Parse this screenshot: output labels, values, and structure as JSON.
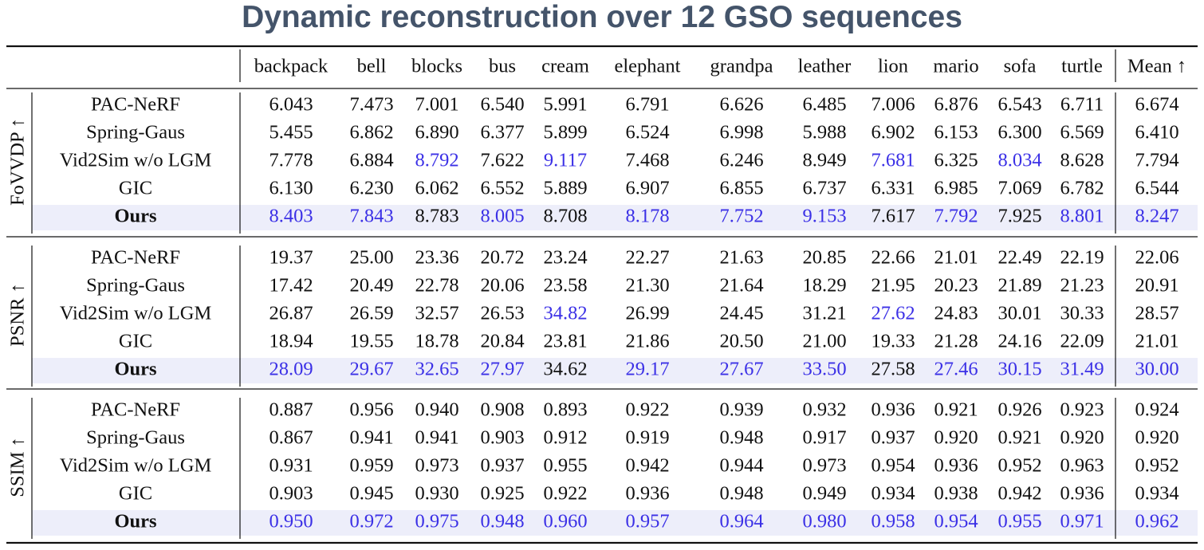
{
  "title": "Dynamic reconstruction over 12 GSO sequences",
  "colors": {
    "best": "#3b30e6",
    "normal": "#111111",
    "highlight_row": "#edeefa",
    "title": "#44546a"
  },
  "chart_data": {
    "type": "table",
    "columns": [
      "backpack",
      "bell",
      "blocks",
      "bus",
      "cream",
      "elephant",
      "grandpa",
      "leather",
      "lion",
      "mario",
      "sofa",
      "turtle",
      "Mean ↑"
    ],
    "groups": [
      {
        "metric": "FoVVDP ↑",
        "rows": [
          {
            "method": "PAC-NeRF",
            "values": [
              "6.043",
              "7.473",
              "7.001",
              "6.540",
              "5.991",
              "6.791",
              "6.626",
              "6.485",
              "7.006",
              "6.876",
              "6.543",
              "6.711",
              "6.674"
            ],
            "best": []
          },
          {
            "method": "Spring-Gaus",
            "values": [
              "5.455",
              "6.862",
              "6.890",
              "6.377",
              "5.899",
              "6.524",
              "6.998",
              "5.988",
              "6.902",
              "6.153",
              "6.300",
              "6.569",
              "6.410"
            ],
            "best": []
          },
          {
            "method": "Vid2Sim w/o LGM",
            "values": [
              "7.778",
              "6.884",
              "8.792",
              "7.622",
              "9.117",
              "7.468",
              "6.246",
              "8.949",
              "7.681",
              "6.325",
              "8.034",
              "8.628",
              "7.794"
            ],
            "best": [
              2,
              4,
              8,
              10
            ]
          },
          {
            "method": "GIC",
            "values": [
              "6.130",
              "6.230",
              "6.062",
              "6.552",
              "5.889",
              "6.907",
              "6.855",
              "6.737",
              "6.331",
              "6.985",
              "7.069",
              "6.782",
              "6.544"
            ],
            "best": []
          },
          {
            "method": "Ours",
            "values": [
              "8.403",
              "7.843",
              "8.783",
              "8.005",
              "8.708",
              "8.178",
              "7.752",
              "9.153",
              "7.617",
              "7.792",
              "7.925",
              "8.801",
              "8.247"
            ],
            "best": [
              0,
              1,
              3,
              5,
              6,
              7,
              9,
              11,
              12
            ],
            "bold": true
          }
        ]
      },
      {
        "metric": "PSNR ↑",
        "rows": [
          {
            "method": "PAC-NeRF",
            "values": [
              "19.37",
              "25.00",
              "23.36",
              "20.72",
              "23.24",
              "22.27",
              "21.63",
              "20.85",
              "22.66",
              "21.01",
              "22.49",
              "22.19",
              "22.06"
            ],
            "best": []
          },
          {
            "method": "Spring-Gaus",
            "values": [
              "17.42",
              "20.49",
              "22.78",
              "20.06",
              "23.58",
              "21.30",
              "21.64",
              "18.29",
              "21.95",
              "20.23",
              "21.89",
              "21.23",
              "20.91"
            ],
            "best": []
          },
          {
            "method": "Vid2Sim w/o LGM",
            "values": [
              "26.87",
              "26.59",
              "32.57",
              "26.53",
              "34.82",
              "26.99",
              "24.45",
              "31.21",
              "27.62",
              "24.83",
              "30.01",
              "30.33",
              "28.57"
            ],
            "best": [
              4,
              8
            ]
          },
          {
            "method": "GIC",
            "values": [
              "18.94",
              "19.55",
              "18.78",
              "20.84",
              "23.81",
              "21.86",
              "20.50",
              "21.00",
              "19.33",
              "21.28",
              "24.16",
              "22.09",
              "21.01"
            ],
            "best": []
          },
          {
            "method": "Ours",
            "values": [
              "28.09",
              "29.67",
              "32.65",
              "27.97",
              "34.62",
              "29.17",
              "27.67",
              "33.50",
              "27.58",
              "27.46",
              "30.15",
              "31.49",
              "30.00"
            ],
            "best": [
              0,
              1,
              2,
              3,
              5,
              6,
              7,
              9,
              10,
              11,
              12
            ],
            "bold": true
          }
        ]
      },
      {
        "metric": "SSIM ↑",
        "rows": [
          {
            "method": "PAC-NeRF",
            "values": [
              "0.887",
              "0.956",
              "0.940",
              "0.908",
              "0.893",
              "0.922",
              "0.939",
              "0.932",
              "0.936",
              "0.921",
              "0.926",
              "0.923",
              "0.924"
            ],
            "best": []
          },
          {
            "method": "Spring-Gaus",
            "values": [
              "0.867",
              "0.941",
              "0.941",
              "0.903",
              "0.912",
              "0.919",
              "0.948",
              "0.917",
              "0.937",
              "0.920",
              "0.921",
              "0.920",
              "0.920"
            ],
            "best": []
          },
          {
            "method": "Vid2Sim w/o LGM",
            "values": [
              "0.931",
              "0.959",
              "0.973",
              "0.937",
              "0.955",
              "0.942",
              "0.944",
              "0.973",
              "0.954",
              "0.936",
              "0.952",
              "0.963",
              "0.952"
            ],
            "best": []
          },
          {
            "method": "GIC",
            "values": [
              "0.903",
              "0.945",
              "0.930",
              "0.925",
              "0.922",
              "0.936",
              "0.948",
              "0.949",
              "0.934",
              "0.938",
              "0.942",
              "0.936",
              "0.934"
            ],
            "best": []
          },
          {
            "method": "Ours",
            "values": [
              "0.950",
              "0.972",
              "0.975",
              "0.948",
              "0.960",
              "0.957",
              "0.964",
              "0.980",
              "0.958",
              "0.954",
              "0.955",
              "0.971",
              "0.962"
            ],
            "best": [
              0,
              1,
              2,
              3,
              4,
              5,
              6,
              7,
              8,
              9,
              10,
              11,
              12
            ],
            "bold": true
          }
        ]
      }
    ]
  }
}
